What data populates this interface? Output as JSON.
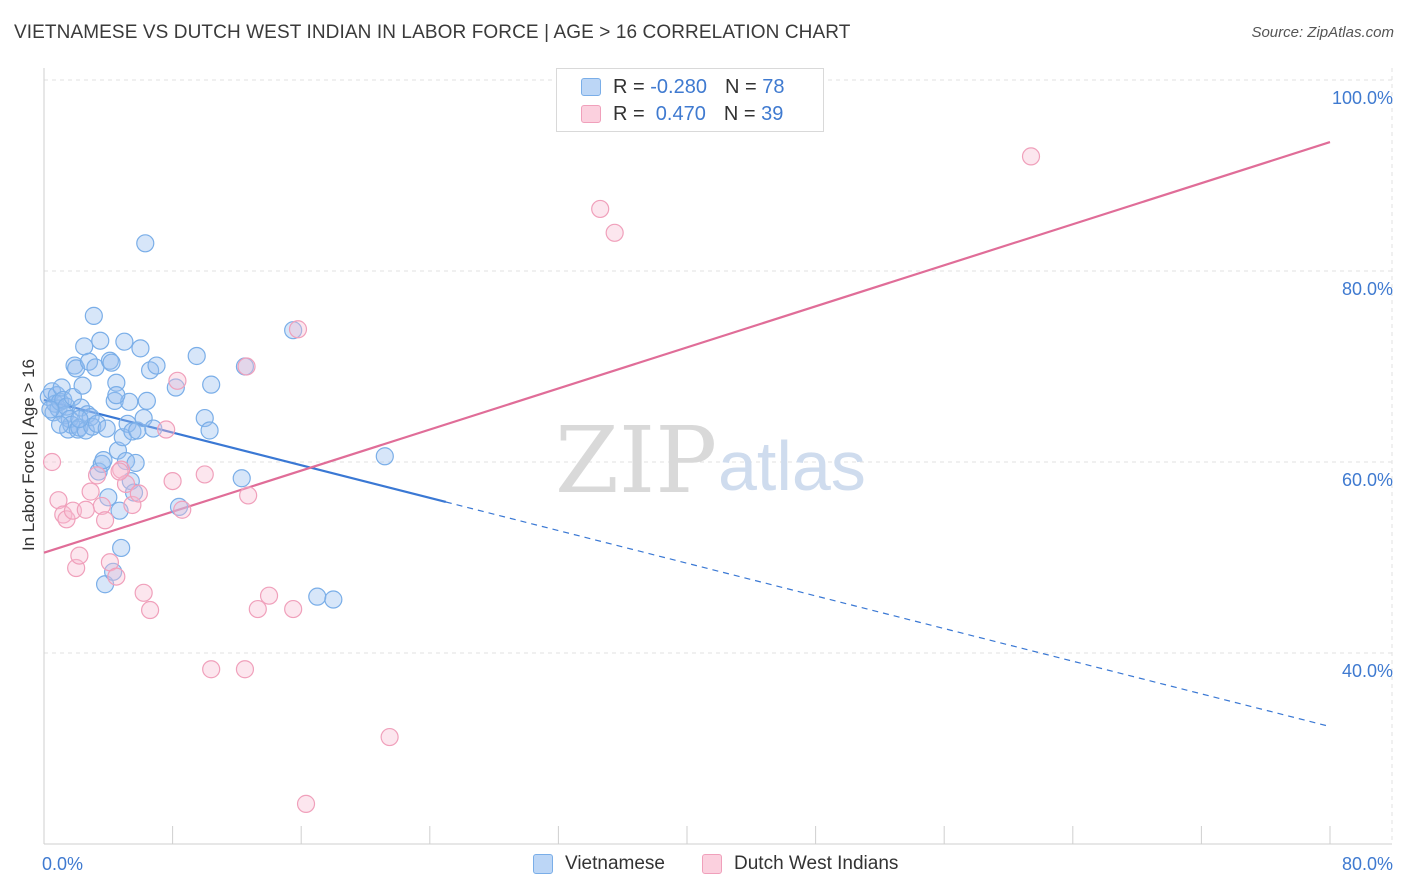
{
  "header": {
    "title": "VIETNAMESE VS DUTCH WEST INDIAN IN LABOR FORCE | AGE > 16 CORRELATION CHART",
    "source": "Source: ZipAtlas.com"
  },
  "watermark": {
    "zip": "ZIP",
    "atlas": "atlas"
  },
  "legend": {
    "rows": [
      {
        "r_label": "R = ",
        "r_value": "-0.280",
        "n_label": "N = ",
        "n_value": "78",
        "color": "#7aaee8",
        "fill": "#bcd6f6"
      },
      {
        "r_label": "R = ",
        "r_value": " 0.470",
        "n_label": "N = ",
        "n_value": "39",
        "color": "#f0a0bb",
        "fill": "#fbd0de"
      }
    ]
  },
  "bottom_legend": [
    {
      "label": "Vietnamese",
      "color": "#7aaee8",
      "fill": "#bcd6f6"
    },
    {
      "label": "Dutch West Indians",
      "color": "#f0a0bb",
      "fill": "#fbd0de"
    }
  ],
  "chart_data": {
    "type": "scatter",
    "title": "VIETNAMESE VS DUTCH WEST INDIAN IN LABOR FORCE | AGE > 16 CORRELATION CHART",
    "xlabel": "",
    "ylabel": "In Labor Force | Age > 16",
    "xlim": [
      0,
      80
    ],
    "ylim": [
      20,
      102
    ],
    "x_tick_labels": [
      {
        "value": 0,
        "label": "0.0%"
      },
      {
        "value": 80,
        "label": "80.0%"
      }
    ],
    "x_minor_ticks": [
      0,
      8,
      16,
      24,
      32,
      40,
      48,
      56,
      64,
      72,
      80
    ],
    "y_ticks": [
      {
        "value": 100,
        "label": "100.0%"
      },
      {
        "value": 80,
        "label": "80.0%"
      },
      {
        "value": 60,
        "label": "60.0%"
      },
      {
        "value": 40,
        "label": "40.0%"
      }
    ],
    "grid": true,
    "series": [
      {
        "name": "Vietnamese",
        "color": "#3a78d4",
        "marker_fill": "rgba(150,190,240,0.38)",
        "marker_stroke": "#7aaee8",
        "trend": {
          "x0": 0,
          "y0": 66.5,
          "x_solid_end": 25,
          "x1": 80,
          "y1": 32.3
        },
        "points": [
          [
            0.3,
            66.8
          ],
          [
            0.5,
            67.4
          ],
          [
            0.6,
            65.2
          ],
          [
            0.7,
            66.1
          ],
          [
            0.8,
            67.0
          ],
          [
            0.9,
            65.6
          ],
          [
            1.0,
            66.3
          ],
          [
            1.1,
            67.8
          ],
          [
            1.2,
            66.5
          ],
          [
            1.3,
            64.9
          ],
          [
            1.4,
            65.8
          ],
          [
            1.5,
            63.4
          ],
          [
            1.6,
            64.5
          ],
          [
            1.7,
            63.9
          ],
          [
            1.8,
            66.8
          ],
          [
            1.9,
            70.1
          ],
          [
            2.0,
            69.8
          ],
          [
            2.1,
            63.4
          ],
          [
            2.2,
            63.6
          ],
          [
            2.3,
            65.7
          ],
          [
            2.4,
            68.0
          ],
          [
            2.5,
            72.1
          ],
          [
            2.6,
            63.3
          ],
          [
            2.7,
            65.0
          ],
          [
            2.8,
            70.5
          ],
          [
            2.9,
            64.7
          ],
          [
            3.0,
            63.7
          ],
          [
            3.1,
            75.3
          ],
          [
            3.2,
            69.9
          ],
          [
            3.3,
            64.0
          ],
          [
            3.4,
            59.0
          ],
          [
            3.5,
            72.7
          ],
          [
            3.6,
            59.8
          ],
          [
            3.7,
            60.2
          ],
          [
            3.8,
            47.2
          ],
          [
            3.9,
            63.5
          ],
          [
            4.0,
            56.3
          ],
          [
            4.1,
            70.6
          ],
          [
            4.2,
            70.4
          ],
          [
            4.3,
            48.5
          ],
          [
            4.4,
            66.4
          ],
          [
            4.5,
            68.3
          ],
          [
            4.6,
            61.2
          ],
          [
            4.7,
            54.9
          ],
          [
            4.8,
            51.0
          ],
          [
            4.9,
            62.6
          ],
          [
            5.0,
            72.6
          ],
          [
            5.1,
            60.1
          ],
          [
            5.2,
            64.0
          ],
          [
            5.3,
            66.3
          ],
          [
            5.4,
            58.0
          ],
          [
            5.5,
            63.2
          ],
          [
            5.6,
            56.8
          ],
          [
            5.7,
            59.9
          ],
          [
            5.8,
            63.3
          ],
          [
            6.0,
            71.9
          ],
          [
            6.2,
            64.6
          ],
          [
            6.4,
            66.4
          ],
          [
            6.6,
            69.6
          ],
          [
            6.8,
            63.5
          ],
          [
            7.0,
            70.1
          ],
          [
            6.3,
            82.9
          ],
          [
            8.2,
            67.8
          ],
          [
            8.4,
            55.3
          ],
          [
            9.5,
            71.1
          ],
          [
            10.0,
            64.6
          ],
          [
            10.3,
            63.3
          ],
          [
            10.4,
            68.1
          ],
          [
            12.5,
            70.0
          ],
          [
            12.3,
            58.3
          ],
          [
            15.5,
            73.8
          ],
          [
            17.0,
            45.9
          ],
          [
            18.0,
            45.6
          ],
          [
            21.2,
            60.6
          ],
          [
            0.4,
            65.5
          ],
          [
            1.0,
            63.9
          ],
          [
            2.2,
            64.5
          ],
          [
            4.5,
            67.0
          ]
        ]
      },
      {
        "name": "Dutch West Indians",
        "color": "#e06d98",
        "marker_fill": "rgba(248,190,210,0.38)",
        "marker_stroke": "#f0a0bb",
        "trend": {
          "x0": 0,
          "y0": 50.5,
          "x1": 80,
          "y1": 93.5
        },
        "points": [
          [
            0.5,
            60.0
          ],
          [
            0.9,
            56.0
          ],
          [
            1.2,
            54.5
          ],
          [
            1.4,
            54.0
          ],
          [
            1.8,
            54.9
          ],
          [
            2.0,
            48.9
          ],
          [
            2.2,
            50.2
          ],
          [
            2.6,
            55.0
          ],
          [
            2.9,
            56.9
          ],
          [
            3.3,
            58.6
          ],
          [
            3.6,
            55.4
          ],
          [
            3.8,
            53.9
          ],
          [
            4.1,
            49.5
          ],
          [
            4.5,
            48.0
          ],
          [
            4.8,
            59.2
          ],
          [
            5.1,
            57.7
          ],
          [
            5.5,
            55.5
          ],
          [
            5.9,
            56.7
          ],
          [
            6.2,
            46.3
          ],
          [
            6.6,
            44.5
          ],
          [
            7.6,
            63.4
          ],
          [
            8.0,
            58.0
          ],
          [
            8.3,
            68.5
          ],
          [
            8.6,
            55.0
          ],
          [
            10.0,
            58.7
          ],
          [
            10.4,
            38.3
          ],
          [
            12.5,
            38.3
          ],
          [
            12.7,
            56.5
          ],
          [
            13.3,
            44.6
          ],
          [
            14.0,
            46.0
          ],
          [
            15.5,
            44.6
          ],
          [
            15.8,
            73.9
          ],
          [
            16.3,
            24.2
          ],
          [
            21.5,
            31.2
          ],
          [
            34.6,
            86.5
          ],
          [
            35.5,
            84.0
          ],
          [
            61.4,
            92.0
          ],
          [
            12.6,
            70.0
          ],
          [
            4.7,
            59.0
          ]
        ]
      }
    ]
  }
}
